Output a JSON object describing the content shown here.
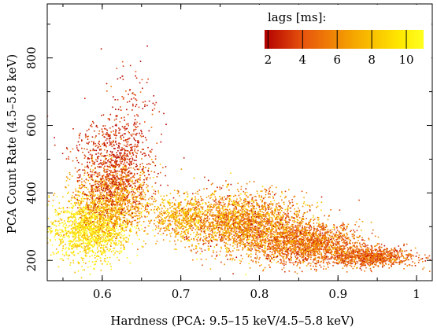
{
  "chart_data": {
    "type": "scatter",
    "title": "",
    "xlabel": "Hardness (PCA: 9.5–15 keV/4.5–5.8 keV)",
    "ylabel": "PCA Count Rate (4.5–5.8 keV)",
    "xlim": [
      0.53,
      1.02
    ],
    "ylim": [
      140,
      960
    ],
    "x_ticks": [
      0.6,
      0.7,
      0.8,
      0.9,
      1
    ],
    "x_tick_labels": [
      "0.6",
      "0.7",
      "0.8",
      "0.9",
      "1"
    ],
    "y_ticks": [
      200,
      400,
      600,
      800
    ],
    "y_tick_labels": [
      "200",
      "400",
      "600",
      "800"
    ],
    "grid": false,
    "colorbar": {
      "title": "lags [ms]:",
      "range": [
        1.8,
        11
      ],
      "ticks": [
        2,
        4,
        6,
        8,
        10
      ],
      "tick_labels": [
        "2",
        "4",
        "6",
        "8",
        "10"
      ],
      "colors": [
        "#b30000",
        "#e8560d",
        "#f5a300",
        "#ffe800",
        "#ffff20"
      ],
      "placement": "top-right"
    },
    "point_clusters": [
      {
        "name_visible": false,
        "x_center": 0.585,
        "x_spread": 0.025,
        "y_center": 290,
        "y_spread": 45,
        "lag_center": 9.5,
        "lag_spread": 1.5,
        "count": 1500
      },
      {
        "name_visible": false,
        "x_center": 0.615,
        "x_spread": 0.025,
        "y_center": 380,
        "y_spread": 50,
        "lag_center": 6.5,
        "lag_spread": 1.5,
        "count": 1100
      },
      {
        "name_visible": false,
        "x_center": 0.615,
        "x_spread": 0.025,
        "y_center": 480,
        "y_spread": 70,
        "lag_center": 3.0,
        "lag_spread": 1.0,
        "count": 900
      },
      {
        "name_visible": false,
        "x_center": 0.635,
        "x_spread": 0.018,
        "y_center": 650,
        "y_spread": 80,
        "lag_center": 3.0,
        "lag_spread": 1.0,
        "count": 120
      },
      {
        "name_visible": false,
        "x_center": 0.7,
        "x_spread": 0.02,
        "y_center": 330,
        "y_spread": 30,
        "lag_center": 7.5,
        "lag_spread": 1.5,
        "count": 500
      },
      {
        "name_visible": false,
        "x_center": 0.78,
        "x_spread": 0.04,
        "y_center": 310,
        "y_spread": 45,
        "lag_center": 6.0,
        "lag_spread": 2.0,
        "count": 2400
      },
      {
        "name_visible": false,
        "x_center": 0.86,
        "x_spread": 0.035,
        "y_center": 250,
        "y_spread": 30,
        "lag_center": 5.0,
        "lag_spread": 1.5,
        "count": 1800
      },
      {
        "name_visible": false,
        "x_center": 0.94,
        "x_spread": 0.03,
        "y_center": 210,
        "y_spread": 14,
        "lag_center": 4.5,
        "lag_spread": 1.2,
        "count": 900
      }
    ]
  }
}
